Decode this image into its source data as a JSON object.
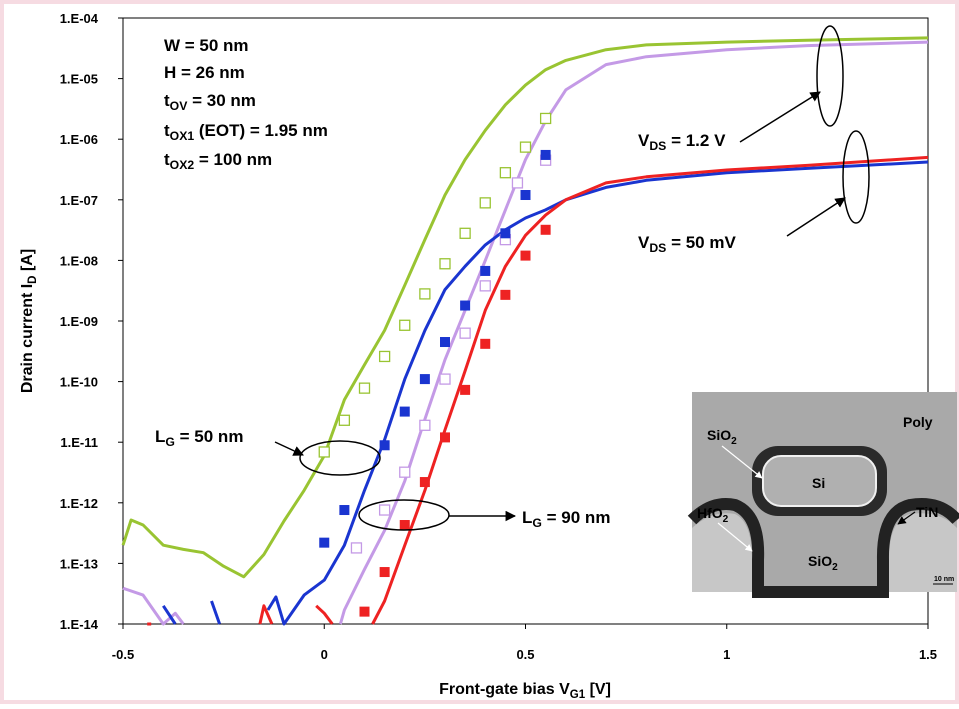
{
  "chart_data": {
    "type": "line",
    "log_y": true,
    "xlim": [
      -0.5,
      1.5
    ],
    "xticks": [
      -0.5,
      0,
      0.5,
      1,
      1.5
    ],
    "ylim": [
      1e-14,
      0.0001
    ],
    "yticks": [
      {
        "value": 1e-14,
        "label": "1.E-14"
      },
      {
        "value": 1e-13,
        "label": "1.E-13"
      },
      {
        "value": 1e-12,
        "label": "1.E-12"
      },
      {
        "value": 1e-11,
        "label": "1.E-11"
      },
      {
        "value": 1e-10,
        "label": "1.E-10"
      },
      {
        "value": 1e-09,
        "label": "1.E-09"
      },
      {
        "value": 1e-08,
        "label": "1.E-08"
      },
      {
        "value": 1e-07,
        "label": "1.E-07"
      },
      {
        "value": 1e-06,
        "label": "1.E-06"
      },
      {
        "value": 1e-05,
        "label": "1.E-05"
      },
      {
        "value": 0.0001,
        "label": "1.E-04"
      }
    ],
    "xlabel": {
      "text": "Front-gate bias V",
      "sub": "G1",
      "rest": " [V]"
    },
    "ylabel": {
      "text": "Drain current I",
      "sub": "D",
      "rest": " [A]"
    },
    "annotations": [
      {
        "text": "W = 50 nm"
      },
      {
        "text": "H = 26 nm"
      },
      {
        "text": "t",
        "sub": "OV",
        "rest": " = 30 nm"
      },
      {
        "text": "t",
        "sub": "OX1",
        "rest": " (EOT) = 1.95 nm"
      },
      {
        "text": "t",
        "sub": "OX2",
        "rest": " = 100 nm"
      },
      {
        "text": "V",
        "sub": "DS",
        "rest": " = 1.2 V"
      },
      {
        "text": "V",
        "sub": "DS",
        "rest": " = 50 mV"
      },
      {
        "text": "L",
        "sub": "G",
        "rest": " = 50 nm"
      },
      {
        "text": "L",
        "sub": "G",
        "rest": " = 90 nm"
      }
    ],
    "inset": {
      "labels": [
        {
          "text": "Poly"
        },
        {
          "text": "SiO",
          "sub": "2"
        },
        {
          "text": "Si"
        },
        {
          "text": "HfO",
          "sub": "2"
        },
        {
          "text": "TiN"
        },
        {
          "text": "SiO",
          "sub": "2"
        },
        {
          "text": "10 nm"
        }
      ]
    },
    "series": [
      {
        "mode": "line",
        "color": "#99c432",
        "x": [
          -0.5,
          -0.48,
          -0.45,
          -0.4,
          -0.35,
          -0.3,
          -0.25,
          -0.2,
          -0.15,
          -0.1,
          -0.05,
          0,
          0.05,
          0.1,
          0.15,
          0.2,
          0.25,
          0.3,
          0.35,
          0.4,
          0.45,
          0.5,
          0.55,
          0.6,
          0.7,
          0.8,
          1,
          1.2,
          1.5
        ],
        "values": [
          2e-13,
          5.2e-13,
          4.3e-13,
          2e-13,
          1.7e-13,
          1.5e-13,
          9e-14,
          6e-14,
          1.4e-13,
          5e-13,
          1.6e-12,
          6e-12,
          5e-11,
          1.9e-10,
          7e-10,
          3.9e-09,
          2.2e-08,
          1.2e-07,
          4.6e-07,
          1.4e-06,
          3.7e-06,
          7.8e-06,
          1.4e-05,
          2e-05,
          3e-05,
          3.6e-05,
          4e-05,
          4.3e-05,
          4.7e-05
        ]
      },
      {
        "mode": "line",
        "color": "#c49ae6",
        "x": [
          -0.5,
          -0.45,
          -0.4,
          -0.37,
          -0.35,
          -0.3,
          0.04,
          0.05,
          0.1,
          0.15,
          0.2,
          0.25,
          0.3,
          0.35,
          0.4,
          0.45,
          0.5,
          0.55,
          0.6,
          0.7,
          0.8,
          1,
          1.2,
          1.5
        ],
        "values": [
          3.9e-14,
          3e-14,
          1e-14,
          1.5e-14,
          1e-14,
          null,
          1e-14,
          1.7e-14,
          8e-14,
          3.5e-13,
          2.3e-12,
          2.4e-11,
          2.3e-10,
          1.5e-09,
          1e-08,
          6.8e-08,
          4.6e-07,
          2e-06,
          6.5e-06,
          1.7e-05,
          2.3e-05,
          3e-05,
          3.5e-05,
          4e-05
        ]
      },
      {
        "mode": "line",
        "color": "#1a35d0",
        "x": [
          -0.4,
          -0.37,
          -0.33,
          -0.28,
          -0.26,
          -0.2,
          -0.14,
          -0.12,
          -0.1,
          -0.05,
          0,
          0.05,
          0.1,
          0.15,
          0.2,
          0.25,
          0.3,
          0.35,
          0.4,
          0.45,
          0.5,
          0.55,
          0.6,
          0.7,
          0.8,
          1,
          1.2,
          1.5
        ],
        "values": [
          2e-14,
          1e-14,
          null,
          2.4e-14,
          1e-14,
          null,
          1.7e-14,
          2.8e-14,
          1e-14,
          3e-14,
          5.3e-14,
          2e-13,
          1.6e-12,
          1.1e-11,
          1.1e-10,
          7e-10,
          3.3e-09,
          8e-09,
          1.8e-08,
          3.2e-08,
          5e-08,
          6.8e-08,
          1e-07,
          1.6e-07,
          2.1e-07,
          2.8e-07,
          3.3e-07,
          4.2e-07
        ]
      },
      {
        "mode": "line",
        "color": "#ee2222",
        "x": [
          -0.44,
          -0.43,
          -0.3,
          -0.16,
          -0.15,
          -0.13,
          -0.1,
          -0.02,
          0,
          0.02,
          0.1,
          0.12,
          0.15,
          0.2,
          0.25,
          0.3,
          0.35,
          0.4,
          0.45,
          0.5,
          0.55,
          0.6,
          0.7,
          0.8,
          1,
          1.2,
          1.5
        ],
        "values": [
          1e-14,
          1e-14,
          null,
          1e-14,
          2e-14,
          1e-14,
          null,
          2e-14,
          1.5e-14,
          1e-14,
          null,
          1e-14,
          2.4e-14,
          2e-13,
          1.6e-12,
          1.6e-11,
          1.5e-10,
          1.5e-09,
          8e-09,
          2.6e-08,
          5.6e-08,
          1e-07,
          1.9e-07,
          2.4e-07,
          3.1e-07,
          3.7e-07,
          5e-07
        ]
      },
      {
        "mode": "markers",
        "marker": "open",
        "color": "#99c432",
        "x": [
          0,
          0.05,
          0.1,
          0.15,
          0.2,
          0.25,
          0.3,
          0.35,
          0.4,
          0.45,
          0.5,
          0.55
        ],
        "values": [
          6.9e-12,
          2.3e-11,
          7.8e-11,
          2.6e-10,
          8.5e-10,
          2.8e-09,
          8.8e-09,
          2.8e-08,
          8.9e-08,
          2.8e-07,
          7.4e-07,
          2.2e-06
        ]
      },
      {
        "mode": "markers",
        "marker": "open",
        "color": "#c49ae6",
        "x": [
          0.08,
          0.15,
          0.2,
          0.25,
          0.3,
          0.35,
          0.4,
          0.45,
          0.48,
          0.55
        ],
        "values": [
          1.8e-13,
          7.6e-13,
          3.2e-12,
          1.9e-11,
          1.1e-10,
          6.3e-10,
          3.8e-09,
          2.2e-08,
          1.9e-07,
          4.5e-07
        ]
      },
      {
        "mode": "markers",
        "marker": "filled",
        "color": "#1a35d0",
        "x": [
          0,
          0.05,
          0.15,
          0.2,
          0.25,
          0.3,
          0.35,
          0.4,
          0.45,
          0.5,
          0.55
        ],
        "values": [
          2.2e-13,
          7.6e-13,
          8.9e-12,
          3.2e-11,
          1.1e-10,
          4.5e-10,
          1.8e-09,
          6.7e-09,
          2.8e-08,
          1.2e-07,
          5.5e-07
        ]
      },
      {
        "mode": "markers",
        "marker": "filled",
        "color": "#ee2222",
        "x": [
          0.1,
          0.15,
          0.2,
          0.25,
          0.3,
          0.35,
          0.4,
          0.45,
          0.5,
          0.55
        ],
        "values": [
          1.6e-14,
          7.2e-14,
          4.3e-13,
          2.2e-12,
          1.2e-11,
          7.3e-11,
          4.2e-10,
          2.7e-09,
          1.2e-08,
          3.2e-08
        ]
      }
    ]
  }
}
